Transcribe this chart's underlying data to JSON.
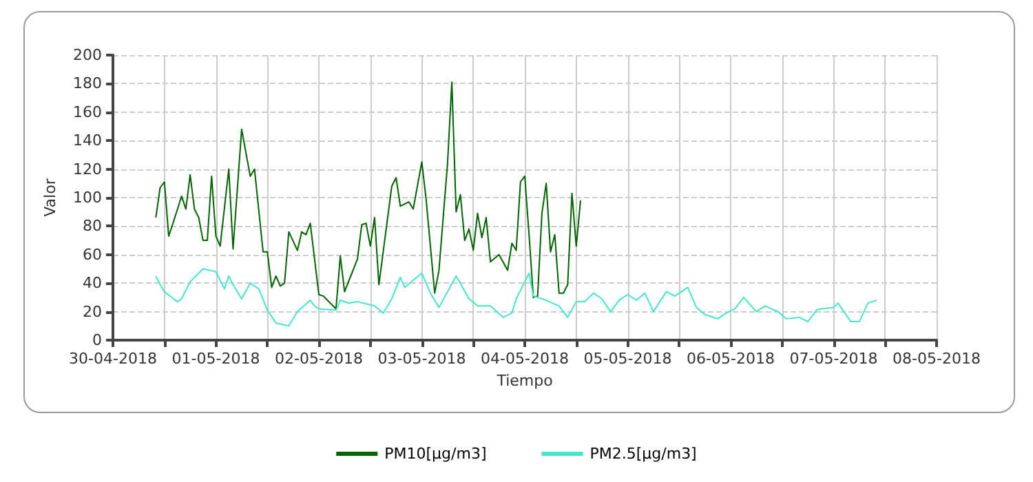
{
  "chart_data": {
    "type": "line",
    "xlabel": "Tiempo",
    "ylabel": "Valor",
    "xlim": [
      "2018-04-30",
      "2018-05-08"
    ],
    "xticks": [
      {
        "value": "2018-04-30",
        "label": "30-04-2018"
      },
      {
        "value": "2018-04-30T12:00",
        "label": null
      },
      {
        "value": "2018-05-01",
        "label": "01-05-2018"
      },
      {
        "value": "2018-05-01T12:00",
        "label": null
      },
      {
        "value": "2018-05-02",
        "label": "02-05-2018"
      },
      {
        "value": "2018-05-02T12:00",
        "label": null
      },
      {
        "value": "2018-05-03",
        "label": "03-05-2018"
      },
      {
        "value": "2018-05-03T12:00",
        "label": null
      },
      {
        "value": "2018-05-04",
        "label": "04-05-2018"
      },
      {
        "value": "2018-05-04T12:00",
        "label": null
      },
      {
        "value": "2018-05-05",
        "label": "05-05-2018"
      },
      {
        "value": "2018-05-05T12:00",
        "label": null
      },
      {
        "value": "2018-05-06",
        "label": "06-05-2018"
      },
      {
        "value": "2018-05-06T12:00",
        "label": null
      },
      {
        "value": "2018-05-07",
        "label": "07-05-2018"
      },
      {
        "value": "2018-05-07T12:00",
        "label": null
      },
      {
        "value": "2018-05-08",
        "label": "08-05-2018"
      }
    ],
    "ylim": [
      0,
      200
    ],
    "yticks": [
      0,
      20,
      40,
      60,
      80,
      100,
      120,
      140,
      160,
      180,
      200
    ],
    "grid": true,
    "legend": "bottom",
    "marker": "none",
    "line_style": "solid",
    "series": [
      {
        "name": "PM10[µg/m3]",
        "color": "#006400",
        "x": [
          "2018-04-30T10:00",
          "2018-04-30T11:00",
          "2018-04-30T12:00",
          "2018-04-30T13:00",
          "2018-04-30T14:00",
          "2018-04-30T16:00",
          "2018-04-30T17:00",
          "2018-04-30T18:00",
          "2018-04-30T19:00",
          "2018-04-30T20:00",
          "2018-04-30T21:00",
          "2018-04-30T22:00",
          "2018-04-30T23:00",
          "2018-05-01T00:00",
          "2018-05-01T01:00",
          "2018-05-01T03:00",
          "2018-05-01T04:00",
          "2018-05-01T06:00",
          "2018-05-01T08:00",
          "2018-05-01T09:00",
          "2018-05-01T11:00",
          "2018-05-01T12:00",
          "2018-05-01T13:00",
          "2018-05-01T14:00",
          "2018-05-01T15:00",
          "2018-05-01T16:00",
          "2018-05-01T17:00",
          "2018-05-01T19:00",
          "2018-05-01T20:00",
          "2018-05-01T21:00",
          "2018-05-01T22:00",
          "2018-05-02T00:00",
          "2018-05-02T01:00",
          "2018-05-02T02:00",
          "2018-05-02T04:00",
          "2018-05-02T05:00",
          "2018-05-02T06:00",
          "2018-05-02T09:00",
          "2018-05-02T10:00",
          "2018-05-02T11:00",
          "2018-05-02T12:00",
          "2018-05-02T13:00",
          "2018-05-02T14:00",
          "2018-05-02T17:00",
          "2018-05-02T18:00",
          "2018-05-02T19:00",
          "2018-05-02T21:00",
          "2018-05-02T22:00",
          "2018-05-03T00:00",
          "2018-05-03T01:00",
          "2018-05-03T03:00",
          "2018-05-03T04:00",
          "2018-05-03T06:00",
          "2018-05-03T07:00",
          "2018-05-03T08:00",
          "2018-05-03T09:00",
          "2018-05-03T10:00",
          "2018-05-03T11:00",
          "2018-05-03T12:00",
          "2018-05-03T13:00",
          "2018-05-03T14:00",
          "2018-05-03T15:00",
          "2018-05-03T16:00",
          "2018-05-03T18:00",
          "2018-05-03T20:00",
          "2018-05-03T21:00",
          "2018-05-03T22:00",
          "2018-05-03T23:00",
          "2018-05-04T00:00",
          "2018-05-04T01:00",
          "2018-05-04T02:00",
          "2018-05-04T03:00",
          "2018-05-04T04:00",
          "2018-05-04T05:00",
          "2018-05-04T06:00",
          "2018-05-04T07:00",
          "2018-05-04T08:00",
          "2018-05-04T09:00",
          "2018-05-04T10:00",
          "2018-05-04T11:00",
          "2018-05-04T12:00",
          "2018-05-04T13:00"
        ],
        "values": [
          86,
          107,
          111,
          73,
          82,
          101,
          92,
          116,
          92,
          86,
          70,
          70,
          115,
          73,
          66,
          120,
          64,
          148,
          115,
          120,
          62,
          62,
          37,
          45,
          38,
          40,
          76,
          63,
          76,
          74,
          82,
          32,
          31,
          28,
          22,
          59,
          34,
          57,
          81,
          82,
          66,
          86,
          39,
          108,
          114,
          94,
          97,
          92,
          125,
          99,
          33,
          49,
          124,
          181,
          90,
          102,
          70,
          78,
          63,
          89,
          72,
          86,
          55,
          60,
          49,
          68,
          63,
          111,
          115,
          74,
          30,
          31,
          89,
          110,
          62,
          74,
          33,
          33,
          39,
          103,
          66,
          98
        ]
      },
      {
        "name": "PM2.5[µg/m3]",
        "color": "#40e8c8",
        "x": [
          "2018-04-30T10:00",
          "2018-04-30T11:00",
          "2018-04-30T12:00",
          "2018-04-30T15:00",
          "2018-04-30T16:00",
          "2018-04-30T18:00",
          "2018-04-30T21:00",
          "2018-05-01T00:00",
          "2018-05-01T02:00",
          "2018-05-01T03:00",
          "2018-05-01T04:00",
          "2018-05-01T06:00",
          "2018-05-01T08:00",
          "2018-05-01T10:00",
          "2018-05-01T12:00",
          "2018-05-01T14:00",
          "2018-05-01T17:00",
          "2018-05-01T19:00",
          "2018-05-01T22:00",
          "2018-05-01T23:00",
          "2018-05-02T00:00",
          "2018-05-02T04:00",
          "2018-05-02T05:00",
          "2018-05-02T07:00",
          "2018-05-02T09:00",
          "2018-05-02T13:00",
          "2018-05-02T15:00",
          "2018-05-02T17:00",
          "2018-05-02T19:00",
          "2018-05-02T20:00",
          "2018-05-02T22:00",
          "2018-05-03T00:00",
          "2018-05-03T02:00",
          "2018-05-03T04:00",
          "2018-05-03T06:00",
          "2018-05-03T08:00",
          "2018-05-03T11:00",
          "2018-05-03T13:00",
          "2018-05-03T16:00",
          "2018-05-03T19:00",
          "2018-05-03T21:00",
          "2018-05-03T22:00",
          "2018-05-04T01:00",
          "2018-05-04T02:00",
          "2018-05-04T05:00",
          "2018-05-04T08:00",
          "2018-05-04T10:00",
          "2018-05-04T12:00",
          "2018-05-04T14:00",
          "2018-05-04T16:00",
          "2018-05-04T18:00",
          "2018-05-04T20:00",
          "2018-05-04T22:00",
          "2018-05-05T00:00",
          "2018-05-05T02:00",
          "2018-05-05T04:00",
          "2018-05-05T06:00",
          "2018-05-05T09:00",
          "2018-05-05T11:00",
          "2018-05-05T14:00",
          "2018-05-05T16:00",
          "2018-05-05T18:00",
          "2018-05-05T21:00",
          "2018-05-05T23:00",
          "2018-05-06T01:00",
          "2018-05-06T03:00",
          "2018-05-06T06:00",
          "2018-05-06T08:00",
          "2018-05-06T11:00",
          "2018-05-06T13:00",
          "2018-05-06T16:00",
          "2018-05-06T18:00",
          "2018-05-06T20:00",
          "2018-05-06T21:00",
          "2018-05-07T00:00",
          "2018-05-07T01:00",
          "2018-05-07T04:00",
          "2018-05-07T06:00",
          "2018-05-07T08:00",
          "2018-05-07T10:00"
        ],
        "values": [
          45,
          39,
          34,
          27,
          29,
          41,
          50,
          48,
          36,
          45,
          39,
          29,
          40,
          36,
          21,
          12,
          10,
          20,
          28,
          24,
          22,
          21,
          28,
          26,
          27,
          24,
          19,
          29,
          44,
          37,
          42,
          47,
          33,
          23,
          34,
          45,
          29,
          24,
          24,
          16,
          19,
          29,
          47,
          31,
          28,
          24,
          16,
          27,
          27,
          33,
          29,
          20,
          28,
          32,
          28,
          33,
          20,
          34,
          31,
          37,
          23,
          18,
          15,
          19,
          22,
          30,
          20,
          24,
          20,
          15,
          16,
          13,
          21,
          22,
          23,
          26,
          13,
          13,
          26,
          28
        ]
      }
    ]
  }
}
